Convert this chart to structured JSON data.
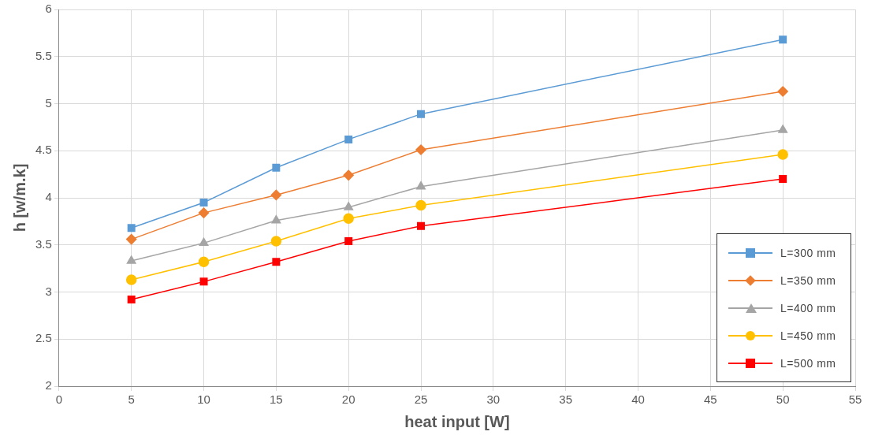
{
  "chart_data": {
    "type": "line",
    "xlabel": "heat input [W]",
    "ylabel": "h [w/m.k]",
    "x": [
      5,
      10,
      15,
      20,
      25,
      50
    ],
    "xlim": [
      0,
      55
    ],
    "xticks": [
      0,
      5,
      10,
      15,
      20,
      25,
      30,
      35,
      40,
      45,
      50,
      55
    ],
    "ylim": [
      2,
      6
    ],
    "yticks": [
      2,
      2.5,
      3,
      3.5,
      4,
      4.5,
      5,
      5.5,
      6
    ],
    "grid": true,
    "legend": "bottom right",
    "line_style": "solid",
    "series": [
      {
        "name": "L=300 mm",
        "color": "#5b9bd5",
        "marker": "square",
        "values": [
          3.68,
          3.95,
          4.32,
          4.62,
          4.89,
          5.68
        ]
      },
      {
        "name": "L=350 mm",
        "color": "#ed7d31",
        "marker": "diamond",
        "values": [
          3.56,
          3.84,
          4.03,
          4.24,
          4.51,
          5.13
        ]
      },
      {
        "name": "L=400 mm",
        "color": "#a5a5a5",
        "marker": "triangle",
        "values": [
          3.33,
          3.52,
          3.76,
          3.9,
          4.12,
          4.72
        ]
      },
      {
        "name": "L=450 mm",
        "color": "#ffc000",
        "marker": "circle",
        "values": [
          3.13,
          3.32,
          3.54,
          3.78,
          3.92,
          4.46
        ]
      },
      {
        "name": "L=500 mm",
        "color": "#ff0000",
        "marker": "square",
        "values": [
          2.92,
          3.11,
          3.32,
          3.54,
          3.7,
          4.2
        ]
      }
    ]
  }
}
